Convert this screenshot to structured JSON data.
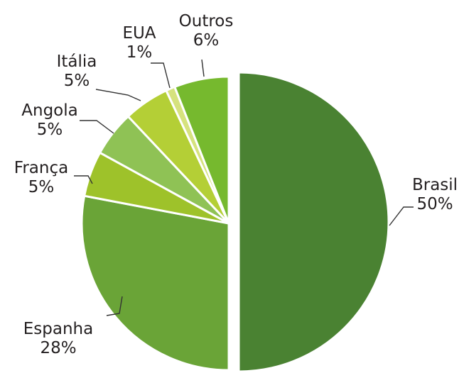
{
  "chart_data": {
    "type": "pie",
    "start": "top, clockwise",
    "legend": "none; labels beside slices with leader lines",
    "slices": [
      {
        "label": "Brasil",
        "percent": "50%",
        "value": 50,
        "color": "#4a8232",
        "exploded": true
      },
      {
        "label": "Espanha",
        "percent": "28%",
        "value": 28,
        "color": "#6aa437"
      },
      {
        "label": "França",
        "percent": "5%",
        "value": 5,
        "color": "#9ec22a"
      },
      {
        "label": "Angola",
        "percent": "5%",
        "value": 5,
        "color": "#8fc255"
      },
      {
        "label": "Itália",
        "percent": "5%",
        "value": 5,
        "color": "#b4cf36"
      },
      {
        "label": "EUA",
        "percent": "1%",
        "value": 1,
        "color": "#d6e27e"
      },
      {
        "label": "Outros",
        "percent": "6%",
        "value": 6,
        "color": "#76b92e"
      }
    ]
  }
}
